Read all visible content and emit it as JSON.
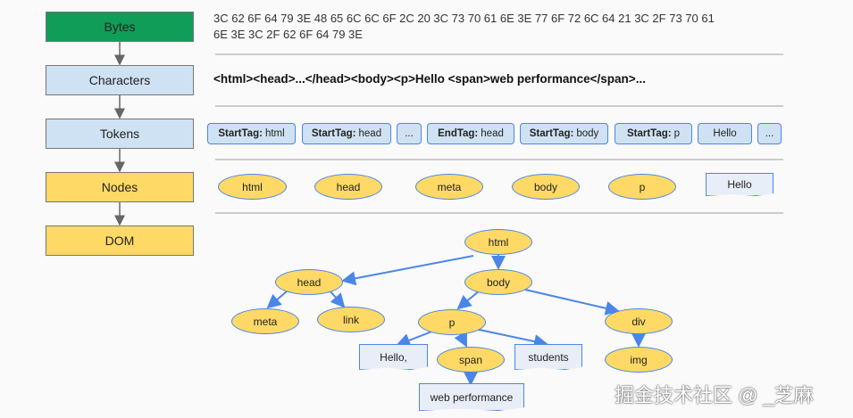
{
  "stages": [
    "Bytes",
    "Characters",
    "Tokens",
    "Nodes",
    "DOM"
  ],
  "bytes": {
    "line1": "3C 62 6F 64 79 3E 48 65 6C 6C 6F 2C 20 3C 73 70 61 6E 3E 77 6F 72 6C 64 21 3C 2F 73 70 61",
    "line2": "6E 3E 3C 2F 62 6F 64 79 3E"
  },
  "characters": "<html><head>...</head><body><p>Hello <span>web performance</span>...",
  "tokens": [
    {
      "kind": "StartTag:",
      "value": "html"
    },
    {
      "kind": "StartTag:",
      "value": "head"
    },
    {
      "kind": "",
      "value": "..."
    },
    {
      "kind": "EndTag:",
      "value": "head"
    },
    {
      "kind": "StartTag:",
      "value": "body"
    },
    {
      "kind": "StartTag:",
      "value": "p"
    },
    {
      "kind": "",
      "value": "Hello"
    },
    {
      "kind": "",
      "value": "..."
    }
  ],
  "nodes": [
    "html",
    "head",
    "meta",
    "body",
    "p",
    "Hello"
  ],
  "dom": {
    "html": "html",
    "head": "head",
    "body": "body",
    "meta": "meta",
    "link": "link",
    "p": "p",
    "div": "div",
    "hello": "Hello,",
    "span": "span",
    "students": "students",
    "img": "img",
    "web": "web performance"
  },
  "colors": {
    "bytes": "#0f9d58",
    "blue": "#cfe2f3",
    "yellow": "#ffd966",
    "edge": "#4a86e8"
  },
  "watermark": "掘金技术社区 @ _芝麻"
}
